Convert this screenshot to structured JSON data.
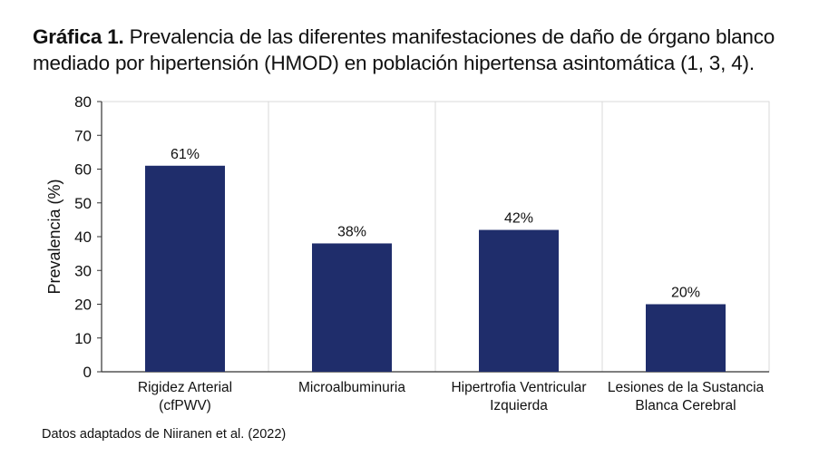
{
  "title": {
    "label": "Gráfica 1.",
    "text": "Prevalencia de las diferentes manifestaciones de daño de órgano blanco mediado por hipertensión (HMOD) en población hipertensa asintomática (1, 3, 4)."
  },
  "source": "Datos adaptados de Niiranen et al. (2022)",
  "chart_data": {
    "type": "bar",
    "categories": [
      [
        "Rigidez Arterial",
        "(cfPWV)"
      ],
      [
        "Microalbuminuria"
      ],
      [
        "Hipertrofia Ventricular",
        "Izquierda"
      ],
      [
        "Lesiones de la Sustancia",
        "Blanca Cerebral"
      ]
    ],
    "values": [
      61,
      38,
      42,
      20
    ],
    "data_labels": [
      "61%",
      "38%",
      "42%",
      "20%"
    ],
    "xlabel": "",
    "ylabel": "Prevalencia (%)",
    "ylim": [
      0,
      80
    ],
    "yticks": [
      0,
      10,
      20,
      30,
      40,
      50,
      60,
      70,
      80
    ],
    "grid": "vertical category separators",
    "colors": {
      "bar": "#1f2d6b",
      "grid": "#d9d9d9",
      "axis": "#333333"
    }
  }
}
